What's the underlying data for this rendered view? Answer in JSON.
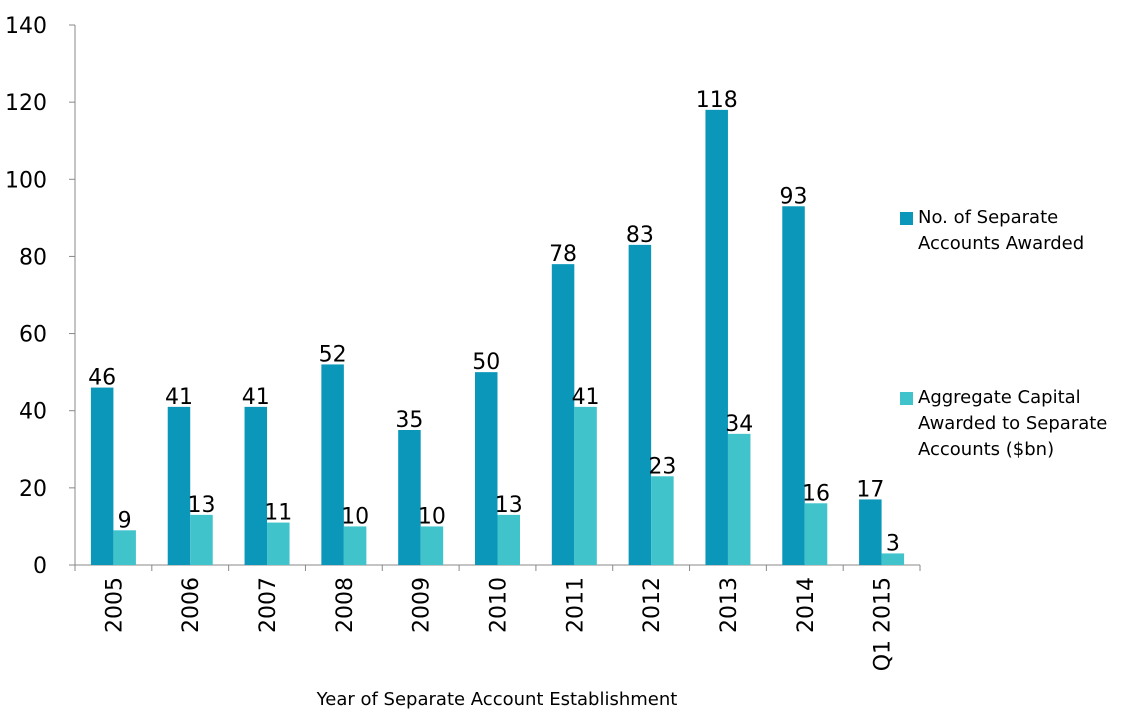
{
  "chart_data": {
    "type": "bar",
    "x_label": "Year of Separate Account Establishment",
    "categories": [
      "2005",
      "2006",
      "2007",
      "2008",
      "2009",
      "2010",
      "2011",
      "2012",
      "2013",
      "2014",
      "Q1 2015"
    ],
    "series": [
      {
        "name": "No. of Separate Accounts Awarded",
        "color": "#0a97b9",
        "values": [
          46,
          41,
          41,
          52,
          35,
          50,
          78,
          83,
          118,
          93,
          17
        ]
      },
      {
        "name": "Aggregate Capital Awarded to Separate Accounts ($bn)",
        "color": "#40c3cb",
        "values": [
          9,
          13,
          11,
          10,
          10,
          13,
          41,
          23,
          34,
          16,
          3
        ]
      }
    ],
    "ylim": [
      0,
      140
    ],
    "yticks": [
      0,
      20,
      40,
      60,
      80,
      100,
      120,
      140
    ],
    "legend": "right"
  }
}
